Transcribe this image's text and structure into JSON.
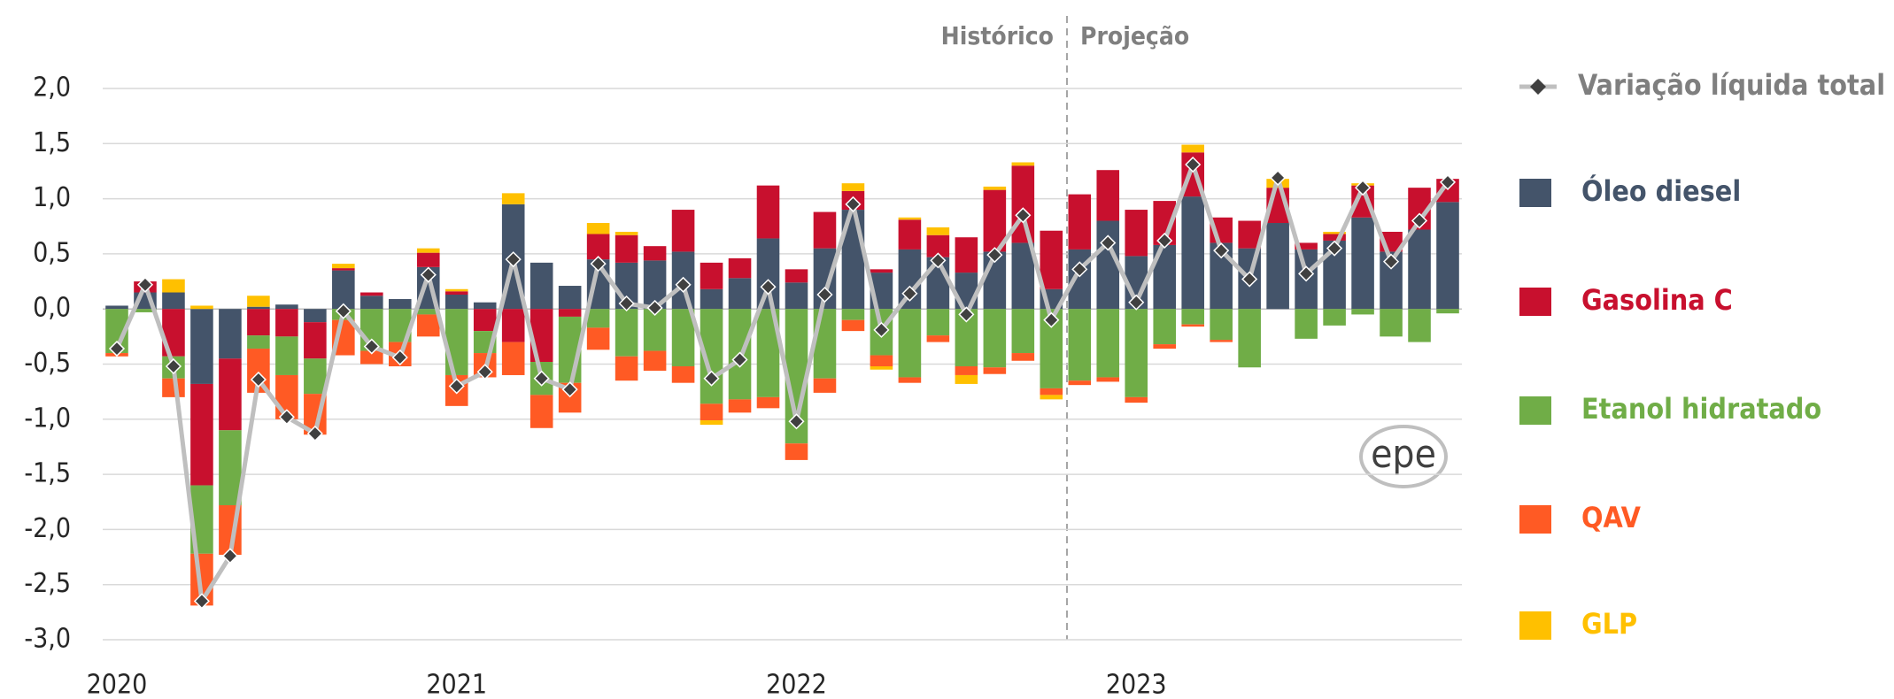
{
  "chart_data": {
    "type": "bar",
    "stacked": true,
    "categories": [
      "2020",
      null,
      null,
      null,
      null,
      null,
      null,
      null,
      null,
      null,
      null,
      null,
      "2021",
      null,
      null,
      null,
      null,
      null,
      null,
      null,
      null,
      null,
      null,
      null,
      "2022",
      null,
      null,
      null,
      null,
      null,
      null,
      null,
      null,
      null,
      null,
      null,
      "2023",
      null,
      null,
      null,
      null,
      null,
      null,
      null,
      null,
      null,
      null,
      null
    ],
    "ylim": [
      -3.0,
      2.0
    ],
    "yticks": [
      {
        "value": -3,
        "label": "-3,0"
      },
      {
        "value": -2.5,
        "label": "-2,5"
      },
      {
        "value": -2,
        "label": "-2,0"
      },
      {
        "value": -1.5,
        "label": "-1,5"
      },
      {
        "value": -1,
        "label": "-1,0"
      },
      {
        "value": -0.5,
        "label": "-0,5"
      },
      {
        "value": 0,
        "label": "0,0"
      },
      {
        "value": 0.5,
        "label": "0,5"
      },
      {
        "value": 1,
        "label": "1,0"
      },
      {
        "value": 1.5,
        "label": "1,5"
      },
      {
        "value": 2,
        "label": "2,0"
      }
    ],
    "grid": true,
    "legend": "right",
    "annotations": [
      "Histórico",
      "Projeção"
    ],
    "logo": "epe",
    "series": [
      {
        "name": "Variação líquida total",
        "type": "line",
        "color": "#bfbfbf",
        "marker_color": "#404040",
        "text_color": "#7f7f7f",
        "values": [
          -0.36,
          0.22,
          -0.52,
          -2.65,
          -2.24,
          -0.64,
          -0.98,
          -1.13,
          -0.02,
          -0.34,
          -0.44,
          0.31,
          -0.7,
          -0.57,
          0.45,
          -0.63,
          -0.73,
          0.41,
          0.05,
          0.01,
          0.22,
          -0.63,
          -0.46,
          0.2,
          -1.02,
          0.13,
          0.95,
          -0.19,
          0.14,
          0.44,
          -0.05,
          0.49,
          0.85,
          -0.1,
          0.36,
          0.6,
          0.06,
          0.62,
          1.31,
          0.53,
          0.27,
          1.19,
          0.32,
          0.55,
          1.1,
          0.43,
          0.8,
          1.15
        ]
      },
      {
        "name": "Óleo diesel",
        "color": "#44546a",
        "values": [
          0.03,
          0.15,
          0.15,
          -0.68,
          -0.45,
          0.02,
          0.04,
          -0.12,
          0.35,
          0.12,
          0.09,
          0.38,
          0.13,
          0.06,
          0.95,
          0.42,
          0.21,
          0.45,
          0.42,
          0.44,
          0.52,
          0.18,
          0.28,
          0.64,
          0.24,
          0.55,
          0.9,
          0.33,
          0.54,
          0.47,
          0.33,
          0.52,
          0.6,
          0.18,
          0.54,
          0.8,
          0.48,
          0.58,
          1.02,
          0.6,
          0.55,
          0.78,
          0.54,
          0.62,
          0.83,
          0.52,
          0.72,
          0.97
        ]
      },
      {
        "name": "Gasolina C",
        "color": "#c8102e",
        "values": [
          0,
          0.1,
          -0.43,
          -0.92,
          -0.65,
          -0.24,
          -0.25,
          -0.33,
          0.02,
          0.03,
          0,
          0.13,
          0.03,
          -0.2,
          -0.3,
          -0.48,
          -0.07,
          0.23,
          0.25,
          0.13,
          0.38,
          0.24,
          0.18,
          0.48,
          0.12,
          0.33,
          0.17,
          0.03,
          0.27,
          0.2,
          0.32,
          0.56,
          0.7,
          0.53,
          0.5,
          0.46,
          0.42,
          0.4,
          0.4,
          0.23,
          0.25,
          0.32,
          0.06,
          0.06,
          0.29,
          0.18,
          0.38,
          0.21
        ]
      },
      {
        "name": "Etanol hidratado",
        "color": "#70ad47",
        "values": [
          -0.4,
          -0.03,
          -0.2,
          -0.62,
          -0.68,
          -0.12,
          -0.35,
          -0.32,
          -0.1,
          -0.38,
          -0.3,
          -0.05,
          -0.6,
          -0.2,
          0,
          -0.3,
          -0.6,
          -0.17,
          -0.43,
          -0.38,
          -0.52,
          -0.86,
          -0.82,
          -0.8,
          -1.22,
          -0.63,
          -0.1,
          -0.42,
          -0.62,
          -0.24,
          -0.52,
          -0.53,
          -0.4,
          -0.72,
          -0.65,
          -0.62,
          -0.8,
          -0.32,
          -0.14,
          -0.28,
          -0.53,
          0,
          -0.27,
          -0.15,
          -0.05,
          -0.25,
          -0.3,
          -0.04
        ]
      },
      {
        "name": "QAV",
        "color": "#ff5a24",
        "values": [
          -0.03,
          0,
          -0.17,
          -0.47,
          -0.45,
          -0.4,
          -0.4,
          -0.37,
          -0.32,
          -0.12,
          -0.22,
          -0.2,
          -0.28,
          -0.22,
          -0.3,
          -0.3,
          -0.27,
          -0.2,
          -0.22,
          -0.18,
          -0.15,
          -0.15,
          -0.12,
          -0.1,
          -0.15,
          -0.13,
          -0.1,
          -0.1,
          -0.05,
          -0.06,
          -0.08,
          -0.06,
          -0.07,
          -0.06,
          -0.04,
          -0.04,
          -0.05,
          -0.04,
          -0.02,
          -0.02,
          0,
          0,
          0,
          0,
          0,
          0,
          0,
          0
        ]
      },
      {
        "name": "GLP",
        "color": "#ffc000",
        "values": [
          0,
          0,
          0.12,
          0.03,
          0,
          0.1,
          0,
          0,
          0.04,
          0,
          0,
          0.04,
          0.02,
          0,
          0.1,
          0,
          0,
          0.1,
          0.03,
          0,
          0,
          -0.04,
          0,
          0,
          0,
          0,
          0.07,
          -0.03,
          0.02,
          0.07,
          -0.08,
          0.03,
          0.03,
          -0.04,
          0,
          0,
          0,
          0,
          0.07,
          0,
          0,
          0.08,
          0,
          0.02,
          0.02,
          0,
          0,
          0
        ]
      }
    ]
  }
}
